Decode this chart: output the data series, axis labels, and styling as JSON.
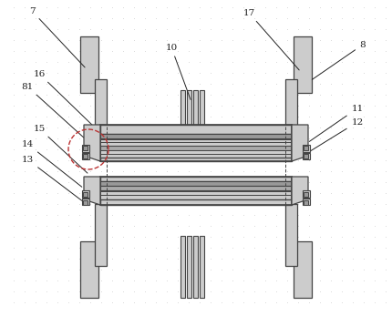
{
  "bg_color": "#ffffff",
  "line_color": "#444444",
  "gray_fill": "#aaaaaa",
  "light_gray": "#cccccc",
  "mid_gray": "#999999",
  "dark_gray": "#777777",
  "red_dashed": "#bb3333",
  "dot_color": "#cccccc"
}
